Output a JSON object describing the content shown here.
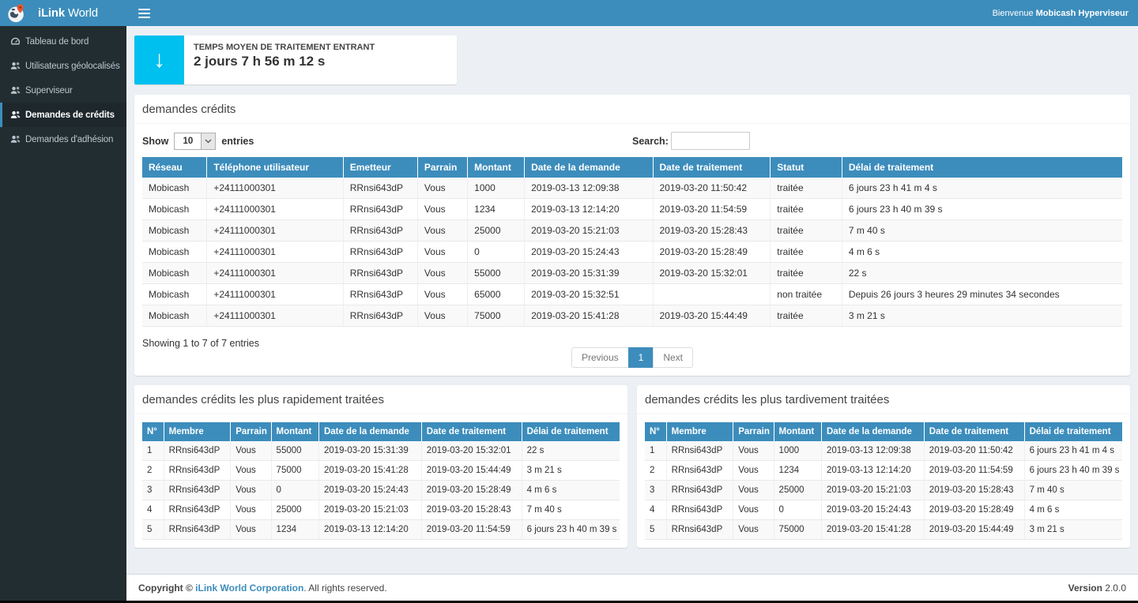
{
  "colors": {
    "navbar": "#3c8dbc",
    "sidebar": "#222d32",
    "sidebar_active": "#1e282c",
    "widget_accent": "#00c0ef",
    "table_header": "#3c8dbc",
    "pagination_active": "#3c8dbc",
    "content_background": "#ecf0f5"
  },
  "sidebar": {
    "brand_bold": "iLink",
    "brand_regular": " World",
    "items": [
      {
        "label": "Tableau de bord",
        "icon": "dashboard-icon",
        "active": false
      },
      {
        "label": "Utilisateurs géolocalisés",
        "icon": "users-icon",
        "active": false
      },
      {
        "label": "Superviseur",
        "icon": "users-icon",
        "active": false
      },
      {
        "label": "Demandes de crédits",
        "icon": "users-icon",
        "active": true
      },
      {
        "label": "Demandes d'adhésion",
        "icon": "users-icon",
        "active": false
      }
    ]
  },
  "navbar": {
    "welcome_prefix": "Bienvenue ",
    "welcome_user": "Mobicash Hyperviseur"
  },
  "widget": {
    "icon": "down-arrow-icon",
    "arrow_glyph": "↓",
    "title": "TEMPS MOYEN DE TRAITEMENT ENTRANT",
    "value": "2 jours 7 h 56 m 12 s"
  },
  "credits_panel": {
    "title": "demandes crédits",
    "show_label": "Show",
    "page_size": "10",
    "entries_label": "entries",
    "search_label": "Search:",
    "search_value": "",
    "table": {
      "columns": [
        "Réseau",
        "Téléphone utilisateur",
        "Emetteur",
        "Parrain",
        "Montant",
        "Date de la demande",
        "Date de traitement",
        "Statut",
        "Délai de traitement"
      ],
      "rows": [
        [
          "Mobicash",
          "+24111000301",
          "RRnsi643dP",
          "Vous",
          "1000",
          "2019-03-13 12:09:38",
          "2019-03-20 11:50:42",
          "traitée",
          "6 jours 23 h 41 m 4 s"
        ],
        [
          "Mobicash",
          "+24111000301",
          "RRnsi643dP",
          "Vous",
          "1234",
          "2019-03-13 12:14:20",
          "2019-03-20 11:54:59",
          "traitée",
          "6 jours 23 h 40 m 39 s"
        ],
        [
          "Mobicash",
          "+24111000301",
          "RRnsi643dP",
          "Vous",
          "25000",
          "2019-03-20 15:21:03",
          "2019-03-20 15:28:43",
          "traitée",
          "7 m 40 s"
        ],
        [
          "Mobicash",
          "+24111000301",
          "RRnsi643dP",
          "Vous",
          "0",
          "2019-03-20 15:24:43",
          "2019-03-20 15:28:49",
          "traitée",
          "4 m 6 s"
        ],
        [
          "Mobicash",
          "+24111000301",
          "RRnsi643dP",
          "Vous",
          "55000",
          "2019-03-20 15:31:39",
          "2019-03-20 15:32:01",
          "traitée",
          "22 s"
        ],
        [
          "Mobicash",
          "+24111000301",
          "RRnsi643dP",
          "Vous",
          "65000",
          "2019-03-20 15:32:51",
          "",
          "non traitée",
          "Depuis 26 jours 3 heures 29 minutes 34 secondes"
        ],
        [
          "Mobicash",
          "+24111000301",
          "RRnsi643dP",
          "Vous",
          "75000",
          "2019-03-20 15:41:28",
          "2019-03-20 15:44:49",
          "traitée",
          "3 m 21 s"
        ]
      ]
    },
    "summary": "Showing 1 to 7 of 7 entries",
    "pagination": {
      "previous": "Previous",
      "page": "1",
      "next": "Next"
    }
  },
  "fastest_panel": {
    "title": "demandes crédits les plus rapidement traitées",
    "table": {
      "columns": [
        "N°",
        "Membre",
        "Parrain",
        "Montant",
        "Date de la demande",
        "Date de traitement",
        "Délai de traitement"
      ],
      "rows": [
        [
          "1",
          "RRnsi643dP",
          "Vous",
          "55000",
          "2019-03-20 15:31:39",
          "2019-03-20 15:32:01",
          "22 s"
        ],
        [
          "2",
          "RRnsi643dP",
          "Vous",
          "75000",
          "2019-03-20 15:41:28",
          "2019-03-20 15:44:49",
          "3 m 21 s"
        ],
        [
          "3",
          "RRnsi643dP",
          "Vous",
          "0",
          "2019-03-20 15:24:43",
          "2019-03-20 15:28:49",
          "4 m 6 s"
        ],
        [
          "4",
          "RRnsi643dP",
          "Vous",
          "25000",
          "2019-03-20 15:21:03",
          "2019-03-20 15:28:43",
          "7 m 40 s"
        ],
        [
          "5",
          "RRnsi643dP",
          "Vous",
          "1234",
          "2019-03-13 12:14:20",
          "2019-03-20 11:54:59",
          "6 jours 23 h 40 m 39 s"
        ]
      ]
    }
  },
  "slowest_panel": {
    "title": "demandes crédits les plus tardivement traitées",
    "table": {
      "columns": [
        "N°",
        "Membre",
        "Parrain",
        "Montant",
        "Date de la demande",
        "Date de traitement",
        "Délai de traitement"
      ],
      "rows": [
        [
          "1",
          "RRnsi643dP",
          "Vous",
          "1000",
          "2019-03-13 12:09:38",
          "2019-03-20 11:50:42",
          "6 jours 23 h 41 m 4 s"
        ],
        [
          "2",
          "RRnsi643dP",
          "Vous",
          "1234",
          "2019-03-13 12:14:20",
          "2019-03-20 11:54:59",
          "6 jours 23 h 40 m 39 s"
        ],
        [
          "3",
          "RRnsi643dP",
          "Vous",
          "25000",
          "2019-03-20 15:21:03",
          "2019-03-20 15:28:43",
          "7 m 40 s"
        ],
        [
          "4",
          "RRnsi643dP",
          "Vous",
          "0",
          "2019-03-20 15:24:43",
          "2019-03-20 15:28:49",
          "4 m 6 s"
        ],
        [
          "5",
          "RRnsi643dP",
          "Vous",
          "75000",
          "2019-03-20 15:41:28",
          "2019-03-20 15:44:49",
          "3 m 21 s"
        ]
      ]
    }
  },
  "footer": {
    "copyright_prefix": "Copyright © ",
    "company_link": "iLink World Corporation",
    "copyright_suffix": ". All rights reserved.",
    "version_label": "Version",
    "version_value": " 2.0.0"
  }
}
